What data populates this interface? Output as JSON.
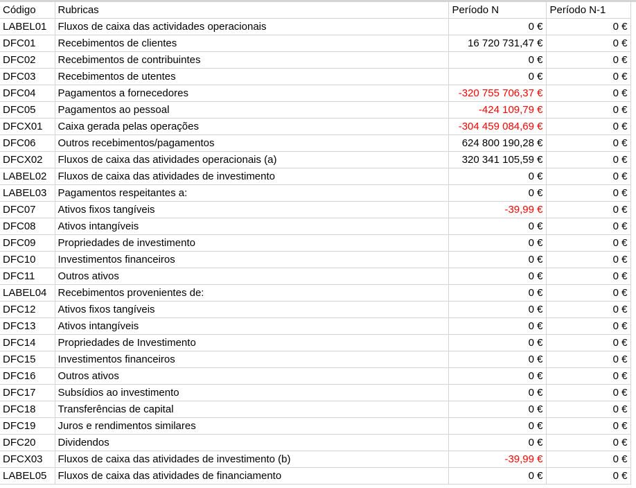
{
  "columns": [
    "Código",
    "Rubricas",
    "Período N",
    "Período N-1"
  ],
  "rows": [
    {
      "code": "LABEL01",
      "desc": "Fluxos de caixa das actividades operacionais",
      "n": "0 €",
      "n1": "0 €",
      "neg": false
    },
    {
      "code": "DFC01",
      "desc": "Recebimentos de clientes",
      "n": "16 720 731,47 €",
      "n1": "0 €",
      "neg": false
    },
    {
      "code": "DFC02",
      "desc": "Recebimentos de contribuintes",
      "n": "0 €",
      "n1": "0 €",
      "neg": false
    },
    {
      "code": "DFC03",
      "desc": "Recebimentos de utentes",
      "n": "0 €",
      "n1": "0 €",
      "neg": false
    },
    {
      "code": "DFC04",
      "desc": "Pagamentos a fornecedores",
      "n": "-320 755 706,37 €",
      "n1": "0 €",
      "neg": true
    },
    {
      "code": "DFC05",
      "desc": "Pagamentos ao pessoal",
      "n": "-424 109,79 €",
      "n1": "0 €",
      "neg": true
    },
    {
      "code": "DFCX01",
      "desc": "Caixa gerada pelas operações",
      "n": "-304 459 084,69 €",
      "n1": "0 €",
      "neg": true
    },
    {
      "code": "DFC06",
      "desc": "Outros recebimentos/pagamentos",
      "n": "624 800 190,28 €",
      "n1": "0 €",
      "neg": false
    },
    {
      "code": "DFCX02",
      "desc": "Fluxos de caixa das atividades operacionais (a)",
      "n": "320 341 105,59 €",
      "n1": "0 €",
      "neg": false
    },
    {
      "code": "LABEL02",
      "desc": "Fluxos de caixa das atividades de investimento",
      "n": "0 €",
      "n1": "0 €",
      "neg": false
    },
    {
      "code": "LABEL03",
      "desc": "Pagamentos respeitantes a:",
      "n": "0 €",
      "n1": "0 €",
      "neg": false
    },
    {
      "code": "DFC07",
      "desc": "Ativos fixos tangíveis",
      "n": "-39,99 €",
      "n1": "0 €",
      "neg": true
    },
    {
      "code": "DFC08",
      "desc": "Ativos intangíveis",
      "n": "0 €",
      "n1": "0 €",
      "neg": false
    },
    {
      "code": "DFC09",
      "desc": "Propriedades de investimento",
      "n": "0 €",
      "n1": "0 €",
      "neg": false
    },
    {
      "code": "DFC10",
      "desc": "Investimentos financeiros",
      "n": "0 €",
      "n1": "0 €",
      "neg": false
    },
    {
      "code": "DFC11",
      "desc": "Outros ativos",
      "n": "0 €",
      "n1": "0 €",
      "neg": false
    },
    {
      "code": "LABEL04",
      "desc": "Recebimentos provenientes de:",
      "n": "0 €",
      "n1": "0 €",
      "neg": false
    },
    {
      "code": "DFC12",
      "desc": "Ativos fixos tangíveis",
      "n": "0 €",
      "n1": "0 €",
      "neg": false
    },
    {
      "code": "DFC13",
      "desc": "Ativos intangíveis",
      "n": "0 €",
      "n1": "0 €",
      "neg": false
    },
    {
      "code": "DFC14",
      "desc": "Propriedades de Investimento",
      "n": "0 €",
      "n1": "0 €",
      "neg": false
    },
    {
      "code": "DFC15",
      "desc": "Investimentos financeiros",
      "n": "0 €",
      "n1": "0 €",
      "neg": false
    },
    {
      "code": "DFC16",
      "desc": "Outros ativos",
      "n": "0 €",
      "n1": "0 €",
      "neg": false
    },
    {
      "code": "DFC17",
      "desc": "Subsídios ao investimento",
      "n": "0 €",
      "n1": "0 €",
      "neg": false
    },
    {
      "code": "DFC18",
      "desc": "Transferências de capital",
      "n": "0 €",
      "n1": "0 €",
      "neg": false
    },
    {
      "code": "DFC19",
      "desc": "Juros e rendimentos similares",
      "n": "0 €",
      "n1": "0 €",
      "neg": false
    },
    {
      "code": "DFC20",
      "desc": "Dividendos",
      "n": "0 €",
      "n1": "0 €",
      "neg": false
    },
    {
      "code": "DFCX03",
      "desc": "Fluxos de caixa das atividades de investimento (b)",
      "n": "-39,99 €",
      "n1": "0 €",
      "neg": true
    },
    {
      "code": "LABEL05",
      "desc": "Fluxos de caixa das atividades de financiamento",
      "n": "0 €",
      "n1": "0 €",
      "neg": false
    }
  ],
  "colors": {
    "negative": "#ff0000",
    "gridline": "#d4d4d4"
  }
}
